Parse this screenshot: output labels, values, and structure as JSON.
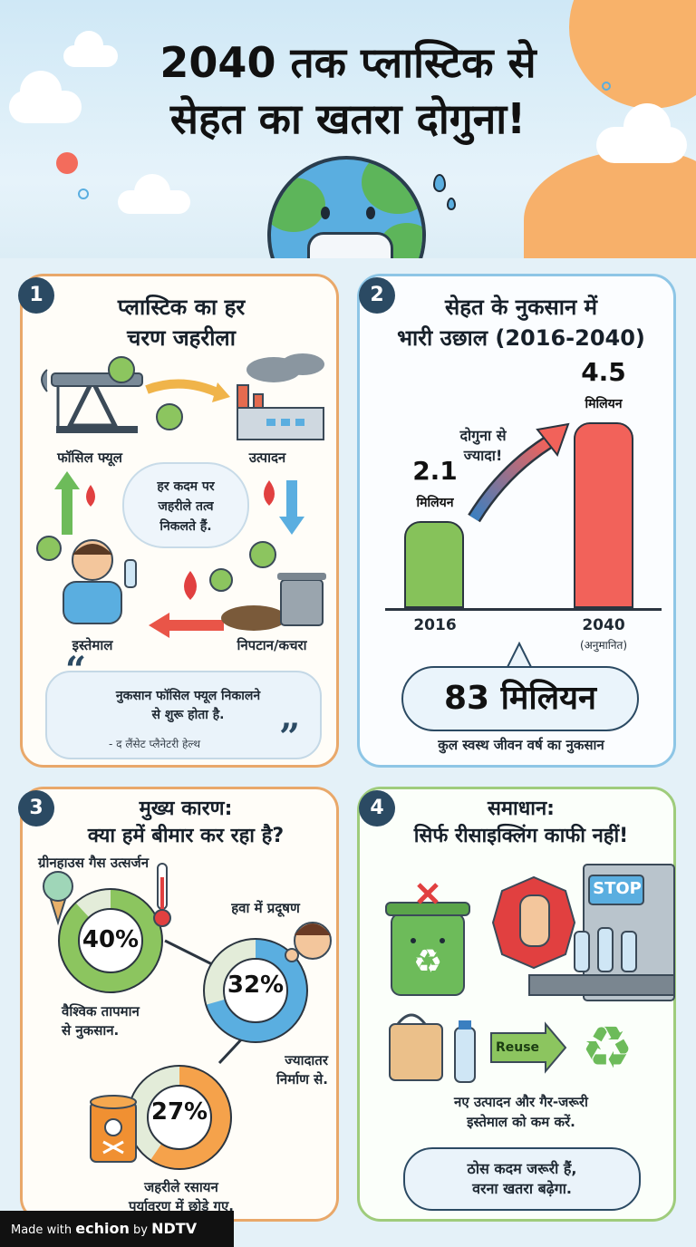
{
  "header": {
    "title_line1": "2040 तक प्लास्टिक से",
    "title_line2": "सेहत का खतरा दोगुना!"
  },
  "card1": {
    "number": "1",
    "title_line1": "प्लास्टिक का हर",
    "title_line2": "चरण जहरीला",
    "stages": {
      "fossil": "फॉसिल फ्यूल",
      "production": "उत्पादन",
      "use": "इस्तेमाल",
      "disposal": "निपटान/कचरा"
    },
    "bubble_line1": "हर कदम पर",
    "bubble_line2": "जहरीले तत्व",
    "bubble_line3": "निकलते हैं.",
    "quote_line1": "नुकसान फॉसिल फ्यूल निकालने",
    "quote_line2": "से शुरू होता है.",
    "quote_source": "- द लैंसेट प्लैनेटरी हेल्थ",
    "quote_open": "“",
    "quote_close": "”"
  },
  "card2": {
    "number": "2",
    "title_line1": "सेहत के नुकसान में",
    "title_line2": "भारी उछाल (2016-2040)",
    "arrow_note_line1": "दोगुना से",
    "arrow_note_line2": "ज्यादा!",
    "big_value": "83 मिलियन",
    "big_caption": "कुल स्वस्थ जीवन वर्ष का नुकसान"
  },
  "chart_data": {
    "type": "bar",
    "categories": [
      "2016",
      "2040"
    ],
    "category_notes": [
      "",
      "(अनुमानित)"
    ],
    "values": [
      2.1,
      4.5
    ],
    "value_labels": [
      "2.1",
      "4.5"
    ],
    "unit": "मिलियन",
    "colors": [
      "#86c25a",
      "#f2625a"
    ],
    "ylim": [
      0,
      4.6
    ]
  },
  "card3": {
    "number": "3",
    "title_line1": "मुख्य कारण:",
    "title_line2": "क्या हमें बीमार कर रहा है?",
    "items": [
      {
        "percent": "40%",
        "value": 40,
        "top_label": "ग्रीनहाउस गैस उत्सर्जन",
        "note_line1": "वैश्विक तापमान",
        "note_line2": "से नुकसान.",
        "color": "#8cc55f"
      },
      {
        "percent": "32%",
        "value": 32,
        "top_label": "हवा में प्रदूषण",
        "note_line1": "ज्यादातर",
        "note_line2": "निर्माण से.",
        "color": "#5aaee0"
      },
      {
        "percent": "27%",
        "value": 27,
        "top_label": "",
        "note_line1": "जहरीले रसायन",
        "note_line2": "पर्यावरण में छोड़े गए.",
        "color": "#f5a24b"
      }
    ]
  },
  "card4": {
    "number": "4",
    "title_line1": "समाधान:",
    "title_line2": "सिर्फ रीसाइक्लिंग काफी नहीं!",
    "stop_sign": "STOP",
    "reuse_label": "Reuse",
    "note_line1": "नए उत्पादन और गैर-जरूरी",
    "note_line2": "इस्तेमाल को कम करें.",
    "box_line1": "ठोस कदम जरूरी हैं,",
    "box_line2": "वरना खतरा बढ़ेगा."
  },
  "footer": {
    "made_with": "Made with",
    "brand": "echion",
    "by": "by",
    "partner": "NDTV"
  }
}
